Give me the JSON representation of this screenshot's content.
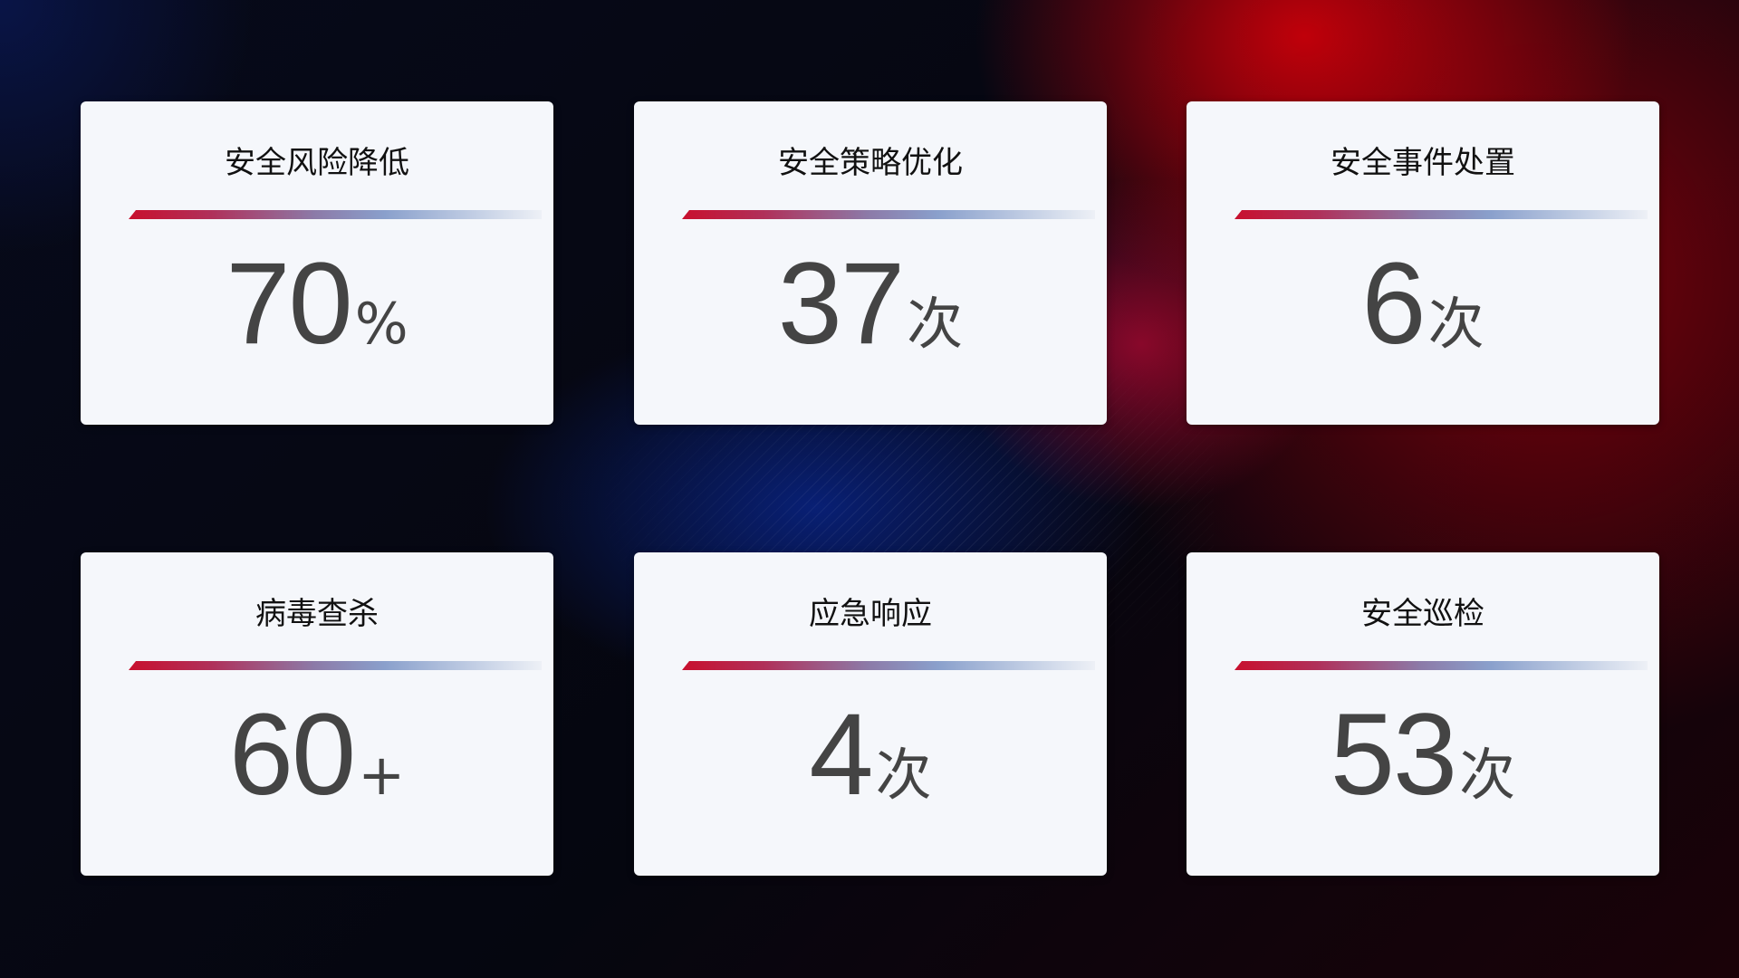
{
  "cards": [
    {
      "title": "安全风险降低",
      "value": "70",
      "unit": "%"
    },
    {
      "title": "安全策略优化",
      "value": "37",
      "unit": "次"
    },
    {
      "title": "安全事件处置",
      "value": "6",
      "unit": "次"
    },
    {
      "title": "病毒查杀",
      "value": "60",
      "unit": "+"
    },
    {
      "title": "应急响应",
      "value": "4",
      "unit": "次"
    },
    {
      "title": "安全巡检",
      "value": "53",
      "unit": "次"
    }
  ],
  "colors": {
    "accent_red": "#c8102e",
    "accent_blue": "#8aa0cc",
    "card_bg": "#f5f7fb",
    "value_text": "#444444"
  }
}
